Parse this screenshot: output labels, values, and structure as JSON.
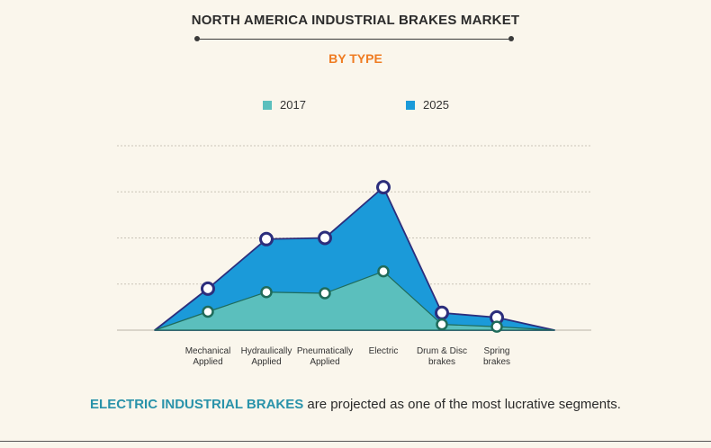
{
  "header": {
    "title": "NORTH AMERICA INDUSTRIAL BRAKES MARKET",
    "subtitle": "BY TYPE"
  },
  "footer": {
    "highlight": "ELECTRIC INDUSTRIAL BRAKES",
    "text": " are projected as one of the most lucrative segments."
  },
  "colors": {
    "series_2017": "#5bbfbd",
    "series_2025": "#1b9ad9",
    "marker_2017": "#1f6b5a",
    "marker_2025": "#2c2e7c",
    "accent": "#ef7c22"
  },
  "chart_data": {
    "type": "area",
    "title": "NORTH AMERICA INDUSTRIAL BRAKES MARKET",
    "subtitle": "BY TYPE",
    "categories": [
      [
        "Mechanical",
        "Applied"
      ],
      [
        "Hydraulically",
        "Applied"
      ],
      [
        "Pneumatically",
        "Applied"
      ],
      [
        "Electric"
      ],
      [
        "Drum & Disc",
        "brakes"
      ],
      [
        "Spring",
        "brakes"
      ]
    ],
    "series": [
      {
        "name": "2017",
        "values": [
          0.8,
          1.65,
          1.6,
          2.55,
          0.25,
          0.15
        ]
      },
      {
        "name": "2025",
        "values": [
          1.8,
          3.95,
          4.0,
          6.2,
          0.75,
          0.55
        ]
      }
    ],
    "ylim": [
      0,
      8
    ],
    "grid": true,
    "legend": "top-center",
    "xlabel": "",
    "ylabel": ""
  }
}
